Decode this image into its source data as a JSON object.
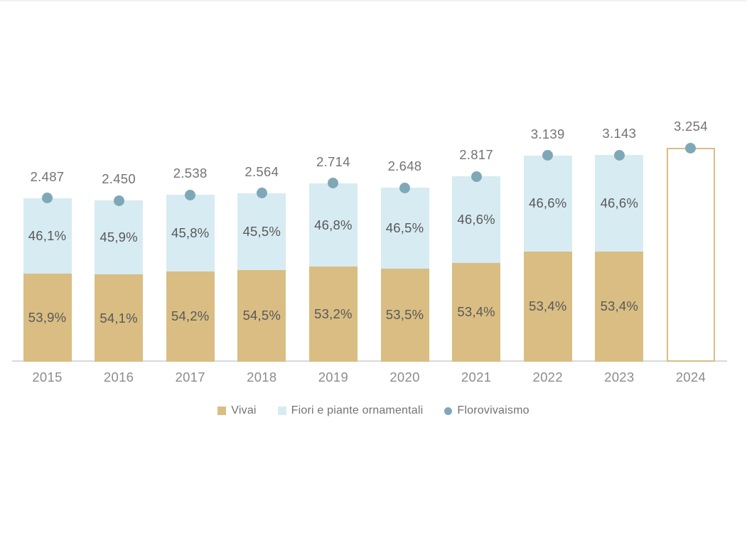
{
  "chart_data": {
    "type": "bar",
    "subtype": "stacked-columns-with-total-markers",
    "title": "",
    "xlabel": "",
    "ylabel": "",
    "grid": false,
    "legend_position": "bottom",
    "categories": [
      "2015",
      "2016",
      "2017",
      "2018",
      "2019",
      "2020",
      "2021",
      "2022",
      "2023",
      "2024"
    ],
    "series": [
      {
        "name": "Vivai",
        "role": "stack-bottom-share",
        "color": "#d9bd83",
        "values_pct": [
          53.9,
          54.1,
          54.2,
          54.5,
          53.2,
          53.5,
          53.4,
          53.4,
          53.4,
          null
        ],
        "labels": [
          "53,9%",
          "54,1%",
          "54,2%",
          "54,5%",
          "53,2%",
          "53,5%",
          "53,4%",
          "53,4%",
          "53,4%",
          ""
        ]
      },
      {
        "name": "Fiori e piante ornamentali",
        "role": "stack-top-share",
        "color": "#d7ebf2",
        "values_pct": [
          46.1,
          45.9,
          45.8,
          45.5,
          46.8,
          46.5,
          46.6,
          46.6,
          46.6,
          null
        ],
        "labels": [
          "46,1%",
          "45,9%",
          "45,8%",
          "45,5%",
          "46,8%",
          "46,5%",
          "46,6%",
          "46,6%",
          "46,6%",
          ""
        ]
      },
      {
        "name": "Florovivaismo",
        "role": "total-marker",
        "color": "#7fa8b7",
        "values": [
          2487,
          2450,
          2538,
          2564,
          2714,
          2648,
          2817,
          3139,
          3143,
          3254
        ],
        "labels": [
          "2.487",
          "2.450",
          "2.538",
          "2.564",
          "2.714",
          "2.648",
          "2.817",
          "3.139",
          "3.143",
          "3.254"
        ]
      }
    ],
    "outlined_categories": [
      "2024"
    ],
    "axis": {
      "baseline_visible": true,
      "baseline_color": "#d9d9d9"
    }
  },
  "legend": {
    "items": [
      {
        "label": "Vivai",
        "marker": "square",
        "color": "#d9bd83"
      },
      {
        "label": "Fiori e piante ornamentali",
        "marker": "square",
        "color": "#d7ebf2"
      },
      {
        "label": "Florovivaismo",
        "marker": "circle",
        "color": "#7fa8b7"
      }
    ]
  },
  "colors": {
    "background": "#ffffff",
    "vivai": "#d9bd83",
    "fiori": "#d7ebf2",
    "marker": "#7fa8b7",
    "axis_line": "#d9d9d9",
    "total_text": "#737373",
    "pct_text": "#595959",
    "year_text": "#8c8c8c",
    "legend_text": "#737373"
  }
}
